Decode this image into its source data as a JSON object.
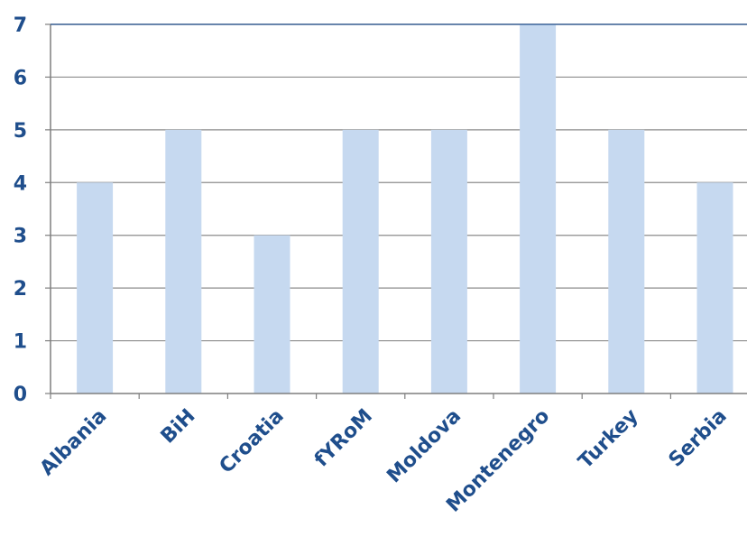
{
  "chart_data": {
    "type": "bar",
    "title": "",
    "xlabel": "",
    "ylabel": "",
    "categories": [
      "Albania",
      "BiH",
      "Croatia",
      "fYRoM",
      "Moldova",
      "Montenegro",
      "Turkey",
      "Serbia"
    ],
    "values": [
      4,
      5,
      3,
      5,
      5,
      7,
      5,
      4
    ],
    "ylim": [
      0,
      7
    ],
    "yticks": [
      "0",
      "1",
      "2",
      "3",
      "4",
      "5",
      "6",
      "7"
    ],
    "grid": true,
    "legend": "none",
    "colors": {
      "bar": "#c6d9f0",
      "gridline": "#8c8c8c",
      "axis": "#7f7f7f",
      "label": "#1f4e8c"
    }
  }
}
